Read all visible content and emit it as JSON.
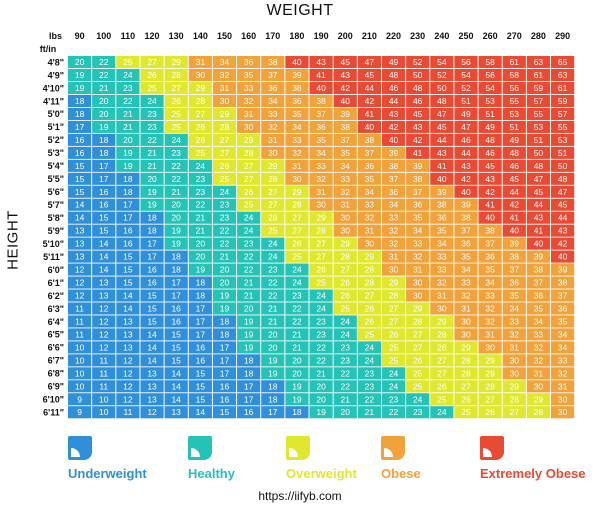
{
  "chart_data": {
    "type": "heatmap",
    "title": "WEIGHT",
    "ylabel": "HEIGHT",
    "x_unit": "lbs",
    "y_unit": "ft/in",
    "weights": [
      90,
      100,
      110,
      120,
      130,
      140,
      150,
      160,
      170,
      180,
      190,
      200,
      210,
      220,
      230,
      240,
      250,
      260,
      270,
      280,
      290
    ],
    "heights": [
      "4'8\"",
      "4'9\"",
      "4'10\"",
      "4'11\"",
      "5'0\"",
      "5'1\"",
      "5'2\"",
      "5'3\"",
      "5'4\"",
      "5'5\"",
      "5'6\"",
      "5'7\"",
      "5'8\"",
      "5'9\"",
      "5'10\"",
      "5'11\"",
      "6'0\"",
      "6'1\"",
      "6'2\"",
      "6'3\"",
      "6'4\"",
      "6'5\"",
      "6'6\"",
      "6'7\"",
      "6'8\"",
      "6'9\"",
      "6'10\"",
      "6'11\""
    ],
    "values": [
      [
        20,
        22,
        25,
        27,
        29,
        31,
        34,
        36,
        38,
        40,
        43,
        45,
        47,
        49,
        52,
        54,
        56,
        58,
        61,
        63,
        65
      ],
      [
        19,
        22,
        24,
        26,
        28,
        30,
        32,
        35,
        37,
        39,
        41,
        43,
        45,
        48,
        50,
        52,
        54,
        56,
        58,
        61,
        63
      ],
      [
        19,
        21,
        23,
        25,
        27,
        29,
        31,
        33,
        36,
        38,
        40,
        42,
        44,
        46,
        48,
        50,
        52,
        54,
        56,
        59,
        61
      ],
      [
        18,
        20,
        22,
        24,
        26,
        28,
        30,
        32,
        34,
        36,
        38,
        40,
        42,
        44,
        46,
        48,
        51,
        53,
        55,
        57,
        59
      ],
      [
        18,
        20,
        21,
        23,
        25,
        27,
        29,
        31,
        33,
        35,
        37,
        39,
        41,
        43,
        45,
        47,
        49,
        51,
        53,
        55,
        57
      ],
      [
        17,
        19,
        21,
        23,
        25,
        26,
        28,
        30,
        32,
        34,
        36,
        38,
        40,
        42,
        43,
        45,
        47,
        49,
        51,
        53,
        55
      ],
      [
        16,
        18,
        20,
        22,
        24,
        26,
        27,
        29,
        31,
        33,
        35,
        37,
        38,
        40,
        42,
        44,
        46,
        48,
        49,
        51,
        53
      ],
      [
        16,
        18,
        19,
        21,
        23,
        25,
        27,
        28,
        30,
        32,
        34,
        35,
        37,
        39,
        41,
        43,
        44,
        46,
        48,
        50,
        51
      ],
      [
        15,
        17,
        19,
        21,
        22,
        24,
        26,
        27,
        29,
        31,
        33,
        34,
        36,
        38,
        39,
        41,
        43,
        45,
        46,
        48,
        50
      ],
      [
        15,
        17,
        18,
        20,
        22,
        23,
        25,
        27,
        28,
        30,
        32,
        33,
        35,
        37,
        38,
        40,
        42,
        43,
        45,
        47,
        48
      ],
      [
        15,
        16,
        18,
        19,
        21,
        23,
        24,
        26,
        27,
        29,
        31,
        32,
        34,
        36,
        37,
        39,
        40,
        42,
        44,
        45,
        47
      ],
      [
        14,
        16,
        17,
        19,
        20,
        22,
        23,
        25,
        27,
        28,
        30,
        31,
        33,
        34,
        36,
        38,
        39,
        41,
        42,
        44,
        45
      ],
      [
        14,
        15,
        17,
        18,
        20,
        21,
        23,
        24,
        26,
        27,
        29,
        30,
        32,
        33,
        35,
        36,
        38,
        40,
        41,
        43,
        44
      ],
      [
        13,
        15,
        16,
        18,
        19,
        21,
        22,
        24,
        25,
        27,
        28,
        30,
        31,
        32,
        34,
        35,
        37,
        38,
        40,
        41,
        43
      ],
      [
        13,
        14,
        16,
        17,
        19,
        20,
        22,
        23,
        24,
        26,
        27,
        29,
        30,
        32,
        33,
        34,
        36,
        37,
        39,
        40,
        42
      ],
      [
        13,
        14,
        15,
        17,
        18,
        20,
        21,
        22,
        24,
        25,
        27,
        28,
        29,
        31,
        32,
        33,
        35,
        36,
        38,
        39,
        40
      ],
      [
        12,
        14,
        15,
        16,
        18,
        19,
        20,
        22,
        23,
        24,
        26,
        27,
        28,
        30,
        31,
        33,
        34,
        35,
        37,
        38,
        39
      ],
      [
        12,
        13,
        15,
        16,
        17,
        18,
        20,
        21,
        22,
        24,
        25,
        26,
        28,
        29,
        30,
        32,
        33,
        34,
        36,
        37,
        38
      ],
      [
        12,
        13,
        14,
        15,
        17,
        18,
        19,
        21,
        22,
        23,
        24,
        26,
        27,
        28,
        30,
        31,
        32,
        33,
        35,
        36,
        37
      ],
      [
        11,
        12,
        14,
        15,
        16,
        17,
        19,
        20,
        21,
        22,
        24,
        25,
        26,
        27,
        29,
        30,
        31,
        32,
        34,
        35,
        36
      ],
      [
        11,
        12,
        13,
        15,
        16,
        17,
        18,
        19,
        21,
        22,
        23,
        24,
        26,
        27,
        28,
        29,
        30,
        32,
        33,
        34,
        35
      ],
      [
        11,
        12,
        13,
        14,
        15,
        17,
        18,
        19,
        20,
        21,
        23,
        24,
        25,
        26,
        27,
        28,
        30,
        31,
        32,
        33,
        34
      ],
      [
        10,
        12,
        13,
        14,
        15,
        16,
        17,
        19,
        20,
        21,
        22,
        23,
        24,
        25,
        27,
        28,
        29,
        30,
        31,
        32,
        34
      ],
      [
        10,
        11,
        12,
        14,
        15,
        16,
        17,
        18,
        19,
        20,
        22,
        23,
        24,
        25,
        26,
        27,
        28,
        29,
        30,
        32,
        33
      ],
      [
        10,
        11,
        12,
        13,
        14,
        15,
        17,
        18,
        19,
        20,
        21,
        22,
        23,
        24,
        25,
        27,
        28,
        29,
        30,
        31,
        32
      ],
      [
        10,
        11,
        12,
        13,
        14,
        15,
        16,
        17,
        18,
        19,
        20,
        22,
        23,
        24,
        25,
        26,
        27,
        28,
        29,
        30,
        31
      ],
      [
        9,
        10,
        12,
        13,
        14,
        15,
        16,
        17,
        18,
        19,
        20,
        21,
        22,
        23,
        24,
        25,
        26,
        27,
        28,
        29,
        30
      ],
      [
        9,
        10,
        11,
        12,
        13,
        14,
        15,
        16,
        17,
        18,
        19,
        20,
        21,
        22,
        23,
        24,
        25,
        26,
        27,
        28,
        30
      ]
    ],
    "legend": [
      {
        "label": "Underweight",
        "color": "#2f8fd8",
        "max_bmi": 18.5
      },
      {
        "label": "Healthy",
        "color": "#25c2b6",
        "max_bmi": 25
      },
      {
        "label": "Overweight",
        "color": "#dfe82e",
        "max_bmi": 30
      },
      {
        "label": "Obese",
        "color": "#f2a23a",
        "max_bmi": 40
      },
      {
        "label": "Extremely Obese",
        "color": "#e84a33",
        "max_bmi": 999
      }
    ],
    "cell_text_color": "#ffffff"
  },
  "source": "https://iifyb.com"
}
